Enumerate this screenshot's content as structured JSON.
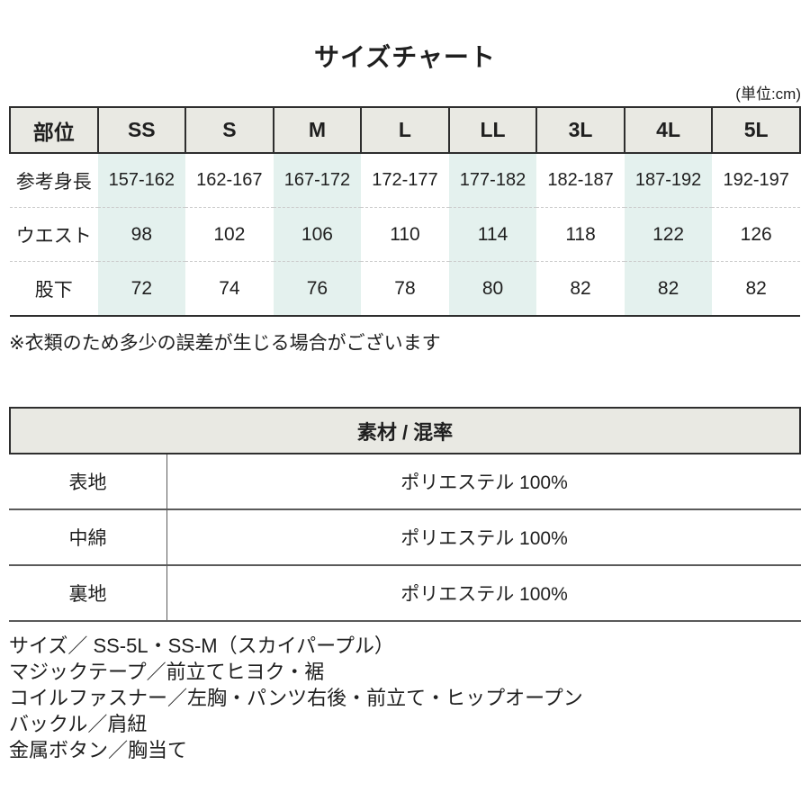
{
  "title": "サイズチャート",
  "unit_note": "(単位:cm)",
  "size_table": {
    "header": [
      "部位",
      "SS",
      "S",
      "M",
      "L",
      "LL",
      "3L",
      "4L",
      "5L"
    ],
    "rows": [
      {
        "label": "参考身長",
        "values": [
          "157-162",
          "162-167",
          "167-172",
          "172-177",
          "177-182",
          "182-187",
          "187-192",
          "192-197"
        ]
      },
      {
        "label": "ウエスト",
        "values": [
          "98",
          "102",
          "106",
          "110",
          "114",
          "118",
          "122",
          "126"
        ]
      },
      {
        "label": "股下",
        "values": [
          "72",
          "74",
          "76",
          "78",
          "80",
          "82",
          "82",
          "82"
        ]
      }
    ],
    "note": "※衣類のため多少の誤差が生じる場合がございます"
  },
  "material_table": {
    "title": "素材 / 混率",
    "rows": [
      {
        "label": "表地",
        "value": "ポリエステル 100%"
      },
      {
        "label": "中綿",
        "value": "ポリエステル 100%"
      },
      {
        "label": "裏地",
        "value": "ポリエステル 100%"
      }
    ]
  },
  "details": [
    "サイズ／ SS-5L・SS-M（スカイパープル）",
    "マジックテープ／前立てヒヨク・裾",
    "コイルファスナー／左胸・パンツ右後・前立て・ヒップオープン",
    "バックル／肩紐",
    "金属ボタン／胸当て"
  ],
  "colors": {
    "header_bg": "#e9e9e3",
    "stripe_bg": "#e4f1ee",
    "border_dark": "#2e2e2e",
    "row_separator": "#cccccc",
    "material_line": "#5a5a5a",
    "text": "#1f1f1f"
  }
}
